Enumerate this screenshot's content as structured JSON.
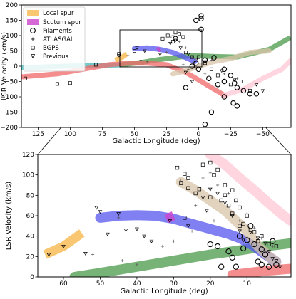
{
  "chart_data": [
    {
      "type": "scatter",
      "panel": "top",
      "xlabel": "Galactic Longitude (deg)",
      "ylabel": "LSR Velocity (km/s)",
      "xlim": [
        138,
        -72
      ],
      "ylim": [
        -200,
        200
      ],
      "xticks": [
        125,
        100,
        75,
        50,
        25,
        0,
        -25,
        -50
      ],
      "xtick_labels": [
        "125",
        "100",
        "75",
        "50",
        "25",
        "0",
        "−25",
        "−50"
      ],
      "yticks": [
        -200,
        -150,
        -100,
        -50,
        0,
        50,
        100,
        150,
        200
      ],
      "ytick_labels": [
        "−200",
        "−150",
        "−100",
        "−50",
        "0",
        "50",
        "100",
        "150",
        "200"
      ],
      "legend": {
        "placement": "top-left",
        "entries": [
          {
            "label": "Local spur",
            "marker": "patch",
            "color": "#f8b84e"
          },
          {
            "label": "Scutum spur",
            "marker": "patch",
            "color": "#cc44cc"
          },
          {
            "label": "Filaments",
            "marker": "circle"
          },
          {
            "label": "ATLASGAL",
            "marker": "plus"
          },
          {
            "label": "BGPS",
            "marker": "square"
          },
          {
            "label": "Previous",
            "marker": "triangle"
          }
        ]
      },
      "zoom_box": {
        "x": [
          66,
          -2
        ],
        "y": [
          0,
          120
        ]
      },
      "arms": [
        {
          "color": "#3fb8b8",
          "points": [
            [
              138,
              -5
            ],
            [
              110,
              -1
            ],
            [
              90,
              2
            ],
            [
              75,
              3
            ],
            [
              62,
              4
            ]
          ]
        },
        {
          "color": "#4a9a4a",
          "points": [
            [
              60,
              5
            ],
            [
              45,
              12
            ],
            [
              30,
              22
            ],
            [
              15,
              30
            ],
            [
              5,
              35
            ],
            [
              -10,
              32
            ],
            [
              -30,
              30
            ],
            [
              -55,
              55
            ],
            [
              -70,
              90
            ]
          ]
        },
        {
          "color": "#f06868",
          "points": [
            [
              138,
              -35
            ],
            [
              110,
              -25
            ],
            [
              90,
              -10
            ],
            [
              70,
              5
            ],
            [
              55,
              10
            ],
            [
              40,
              10
            ],
            [
              25,
              5
            ],
            [
              10,
              -20
            ],
            [
              0,
              -45
            ],
            [
              -10,
              -70
            ],
            [
              -20,
              -95
            ]
          ]
        },
        {
          "color": "#d8c4a8",
          "points": [
            [
              20,
              -25
            ],
            [
              10,
              -15
            ],
            [
              0,
              0
            ],
            [
              -12,
              15
            ],
            [
              -25,
              25
            ],
            [
              -40,
              45
            ],
            [
              -55,
              50
            ]
          ]
        },
        {
          "color": "#ffc8d4",
          "points": [
            [
              -20,
              -95
            ],
            [
              -35,
              -75
            ],
            [
              -50,
              -40
            ],
            [
              -65,
              -10
            ],
            [
              -72,
              20
            ]
          ]
        },
        {
          "color": "#5555ee",
          "points": [
            [
              50,
              58
            ],
            [
              40,
              60
            ],
            [
              30,
              55
            ],
            [
              20,
              45
            ],
            [
              10,
              28
            ],
            [
              3,
              15
            ]
          ]
        }
      ],
      "local_spur": [
        [
          65,
          20
        ],
        [
          60,
          28
        ],
        [
          56,
          40
        ]
      ],
      "scutum_spur": [
        [
          32,
          52
        ],
        [
          30,
          58
        ]
      ],
      "filaments": [
        [
          -2,
          165
        ],
        [
          -2,
          155
        ],
        [
          2,
          150
        ],
        [
          -2,
          120
        ],
        [
          -20,
          -10
        ],
        [
          -25,
          -30
        ],
        [
          -28,
          -55
        ],
        [
          -30,
          -70
        ],
        [
          -35,
          -80
        ],
        [
          -40,
          -90
        ],
        [
          -45,
          -90
        ],
        [
          -20,
          -100
        ],
        [
          -27,
          -120
        ],
        [
          -30,
          -130
        ],
        [
          -10,
          -150
        ],
        [
          -5,
          -190
        ],
        [
          10,
          -70
        ],
        [
          0,
          -10
        ],
        [
          5,
          0
        ],
        [
          2,
          10
        ],
        [
          -5,
          20
        ],
        [
          -12,
          28
        ],
        [
          -15,
          -60
        ],
        [
          -20,
          -50
        ],
        [
          -8,
          -40
        ],
        [
          18,
          90
        ]
      ],
      "atlasgal": [
        [
          20,
          100
        ],
        [
          22,
          95
        ],
        [
          15,
          80
        ],
        [
          10,
          60
        ],
        [
          25,
          45
        ],
        [
          30,
          40
        ],
        [
          5,
          30
        ],
        [
          -10,
          20
        ],
        [
          -20,
          -25
        ],
        [
          -30,
          -40
        ],
        [
          40,
          15
        ],
        [
          45,
          20
        ],
        [
          55,
          35
        ],
        [
          8,
          -10
        ],
        [
          -5,
          -25
        ],
        [
          12,
          5
        ]
      ],
      "bgps": [
        [
          100,
          -55
        ],
        [
          80,
          5
        ],
        [
          62,
          40
        ],
        [
          50,
          50
        ],
        [
          28,
          90
        ],
        [
          24,
          100
        ],
        [
          18,
          110
        ],
        [
          15,
          105
        ],
        [
          12,
          95
        ],
        [
          20,
          80
        ],
        [
          10,
          45
        ],
        [
          5,
          30
        ],
        [
          -5,
          10
        ],
        [
          -15,
          -30
        ],
        [
          -25,
          -60
        ],
        [
          -35,
          -50
        ],
        [
          -40,
          -80
        ],
        [
          135,
          -40
        ],
        [
          110,
          -58
        ],
        [
          0,
          30
        ],
        [
          -10,
          -10
        ]
      ],
      "previous": [
        [
          62,
          35
        ],
        [
          48,
          60
        ],
        [
          42,
          50
        ],
        [
          30,
          40
        ],
        [
          22,
          75
        ],
        [
          18,
          85
        ],
        [
          14,
          60
        ],
        [
          8,
          40
        ],
        [
          2,
          20
        ],
        [
          -5,
          15
        ],
        [
          -18,
          -15
        ],
        [
          -28,
          -45
        ],
        [
          -45,
          -60
        ],
        [
          -50,
          -80
        ],
        [
          10,
          -20
        ],
        [
          5,
          -50
        ]
      ]
    },
    {
      "type": "scatter",
      "panel": "bottom (zoom)",
      "xlabel": "Galactic Longitude (deg)",
      "ylabel": "LSR Velocity (km/s)",
      "xlim": [
        67,
        -2
      ],
      "ylim": [
        0,
        120
      ],
      "xticks": [
        60,
        50,
        40,
        30,
        20,
        10
      ],
      "xtick_labels": [
        "60",
        "50",
        "40",
        "30",
        "20",
        "10"
      ],
      "yticks": [
        0,
        20,
        40,
        60,
        80,
        100,
        120
      ],
      "ytick_labels": [
        "0",
        "20",
        "40",
        "60",
        "80",
        "100",
        "120"
      ],
      "arms": [
        {
          "color": "#4a9a4a",
          "points": [
            [
              57,
              0
            ],
            [
              50,
              4
            ],
            [
              40,
              10
            ],
            [
              30,
              16
            ],
            [
              20,
              22
            ],
            [
              12,
              26
            ],
            [
              5,
              30
            ],
            [
              -2,
              33
            ]
          ]
        },
        {
          "color": "#5555ee",
          "points": [
            [
              50,
              58
            ],
            [
              45,
              60
            ],
            [
              40,
              60.5
            ],
            [
              35,
              60
            ],
            [
              30,
              57
            ],
            [
              25,
              52
            ],
            [
              20,
              47
            ],
            [
              15,
              42
            ],
            [
              12,
              38
            ],
            [
              8,
              30
            ],
            [
              5,
              22
            ],
            [
              2,
              15
            ]
          ]
        },
        {
          "color": "#d8c4a8",
          "points": [
            [
              28,
              93
            ],
            [
              24,
              85
            ],
            [
              20,
              75
            ],
            [
              16,
              65
            ],
            [
              13,
              55
            ],
            [
              10,
              45
            ],
            [
              7,
              30
            ],
            [
              4,
              20
            ],
            [
              2,
              15
            ]
          ]
        },
        {
          "color": "#ffc8d4",
          "points": [
            [
              20,
              120
            ],
            [
              16,
              110
            ],
            [
              12,
              97
            ],
            [
              8,
              85
            ],
            [
              4,
              72
            ],
            [
              0,
              60
            ],
            [
              -2,
              55
            ]
          ]
        },
        {
          "color": "#f06868",
          "points": [
            [
              14,
              2
            ],
            [
              5,
              6
            ],
            [
              -2,
              8
            ]
          ]
        }
      ],
      "local_spur": [
        [
          65,
          22
        ],
        [
          60,
          30
        ],
        [
          55,
          43
        ]
      ],
      "scutum_spur": [
        [
          32,
          57
        ],
        [
          30,
          60
        ]
      ],
      "filaments": [
        [
          12,
          40
        ],
        [
          10,
          36
        ],
        [
          8,
          32
        ],
        [
          6,
          27
        ],
        [
          5,
          22
        ],
        [
          7,
          15
        ],
        [
          4,
          10
        ],
        [
          3,
          35
        ],
        [
          9,
          50
        ],
        [
          15,
          25
        ],
        [
          20,
          32
        ],
        [
          14,
          19
        ],
        [
          6,
          12
        ],
        [
          11,
          28
        ],
        [
          13,
          10
        ],
        [
          2,
          12
        ],
        [
          18,
          30
        ],
        [
          17,
          10
        ]
      ],
      "atlasgal": [
        [
          20,
          102
        ],
        [
          22,
          97
        ],
        [
          18,
          90
        ],
        [
          15,
          82
        ],
        [
          10,
          62
        ],
        [
          8,
          48
        ],
        [
          12,
          55
        ],
        [
          25,
          45
        ],
        [
          30,
          35
        ],
        [
          33,
          30
        ],
        [
          40,
          12
        ],
        [
          44,
          16
        ],
        [
          56,
          33
        ],
        [
          52,
          22
        ],
        [
          45,
          58
        ],
        [
          28,
          94
        ],
        [
          24,
          70
        ],
        [
          6,
          38
        ],
        [
          3,
          30
        ],
        [
          16,
          40
        ],
        [
          19,
          55
        ]
      ],
      "bgps": [
        [
          28,
          92
        ],
        [
          27,
          101
        ],
        [
          26,
          97
        ],
        [
          22,
          110
        ],
        [
          20,
          112
        ],
        [
          18,
          105
        ],
        [
          16,
          90
        ],
        [
          14,
          85
        ],
        [
          13,
          75
        ],
        [
          12,
          68
        ],
        [
          20,
          78
        ],
        [
          15,
          70
        ],
        [
          10,
          60
        ],
        [
          23,
          86
        ],
        [
          26,
          87
        ],
        [
          19,
          100
        ],
        [
          11,
          52
        ],
        [
          9,
          46
        ],
        [
          8,
          44
        ],
        [
          6,
          40
        ],
        [
          4,
          32
        ],
        [
          2,
          30
        ],
        [
          7,
          35
        ],
        [
          12,
          50
        ],
        [
          14,
          62
        ],
        [
          17,
          75
        ],
        [
          24,
          82
        ],
        [
          29,
          107
        ],
        [
          16,
          80
        ],
        [
          27,
          58
        ]
      ],
      "previous": [
        [
          51,
          68
        ],
        [
          50,
          64
        ],
        [
          45,
          62
        ],
        [
          43,
          46
        ],
        [
          40,
          47
        ],
        [
          38,
          40
        ],
        [
          36,
          35
        ],
        [
          31,
          55
        ],
        [
          22,
          78
        ],
        [
          20,
          86
        ],
        [
          18,
          82
        ],
        [
          16,
          73
        ],
        [
          14,
          60
        ],
        [
          12,
          45
        ],
        [
          9,
          44
        ],
        [
          7,
          38
        ],
        [
          5,
          33
        ],
        [
          4,
          25
        ],
        [
          3,
          18
        ],
        [
          2,
          16
        ],
        [
          1,
          10
        ],
        [
          21,
          65
        ],
        [
          11,
          36
        ],
        [
          54,
          23
        ],
        [
          64,
          22
        ],
        [
          60,
          30
        ],
        [
          48,
          42
        ],
        [
          26,
          50
        ]
      ]
    }
  ]
}
